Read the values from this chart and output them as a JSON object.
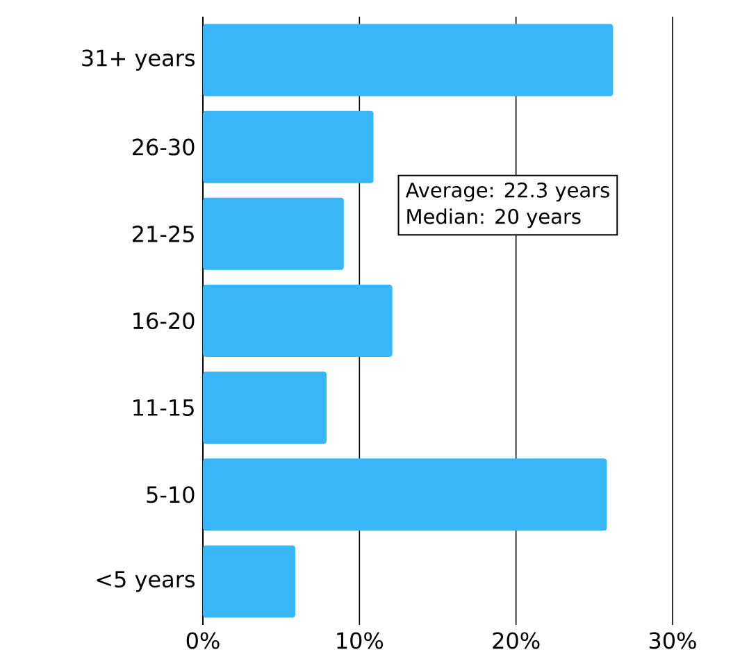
{
  "chart_data": {
    "type": "bar",
    "orientation": "horizontal",
    "categories": [
      "31+ years",
      "26-30",
      "21-25",
      "16-20",
      "11-15",
      "5-10",
      "<5 years"
    ],
    "values": [
      26.2,
      10.9,
      9.0,
      12.1,
      7.9,
      25.8,
      5.9
    ],
    "color": "#38b6f8",
    "xlim": [
      0,
      30
    ],
    "xticks": [
      {
        "value": 0,
        "label": "0%"
      },
      {
        "value": 10,
        "label": "10%"
      },
      {
        "value": 20,
        "label": "20%"
      },
      {
        "value": 30,
        "label": "30%"
      }
    ],
    "grid": "x",
    "annotations": [
      "Average: 22.3 years",
      "Median: 20 years"
    ]
  }
}
